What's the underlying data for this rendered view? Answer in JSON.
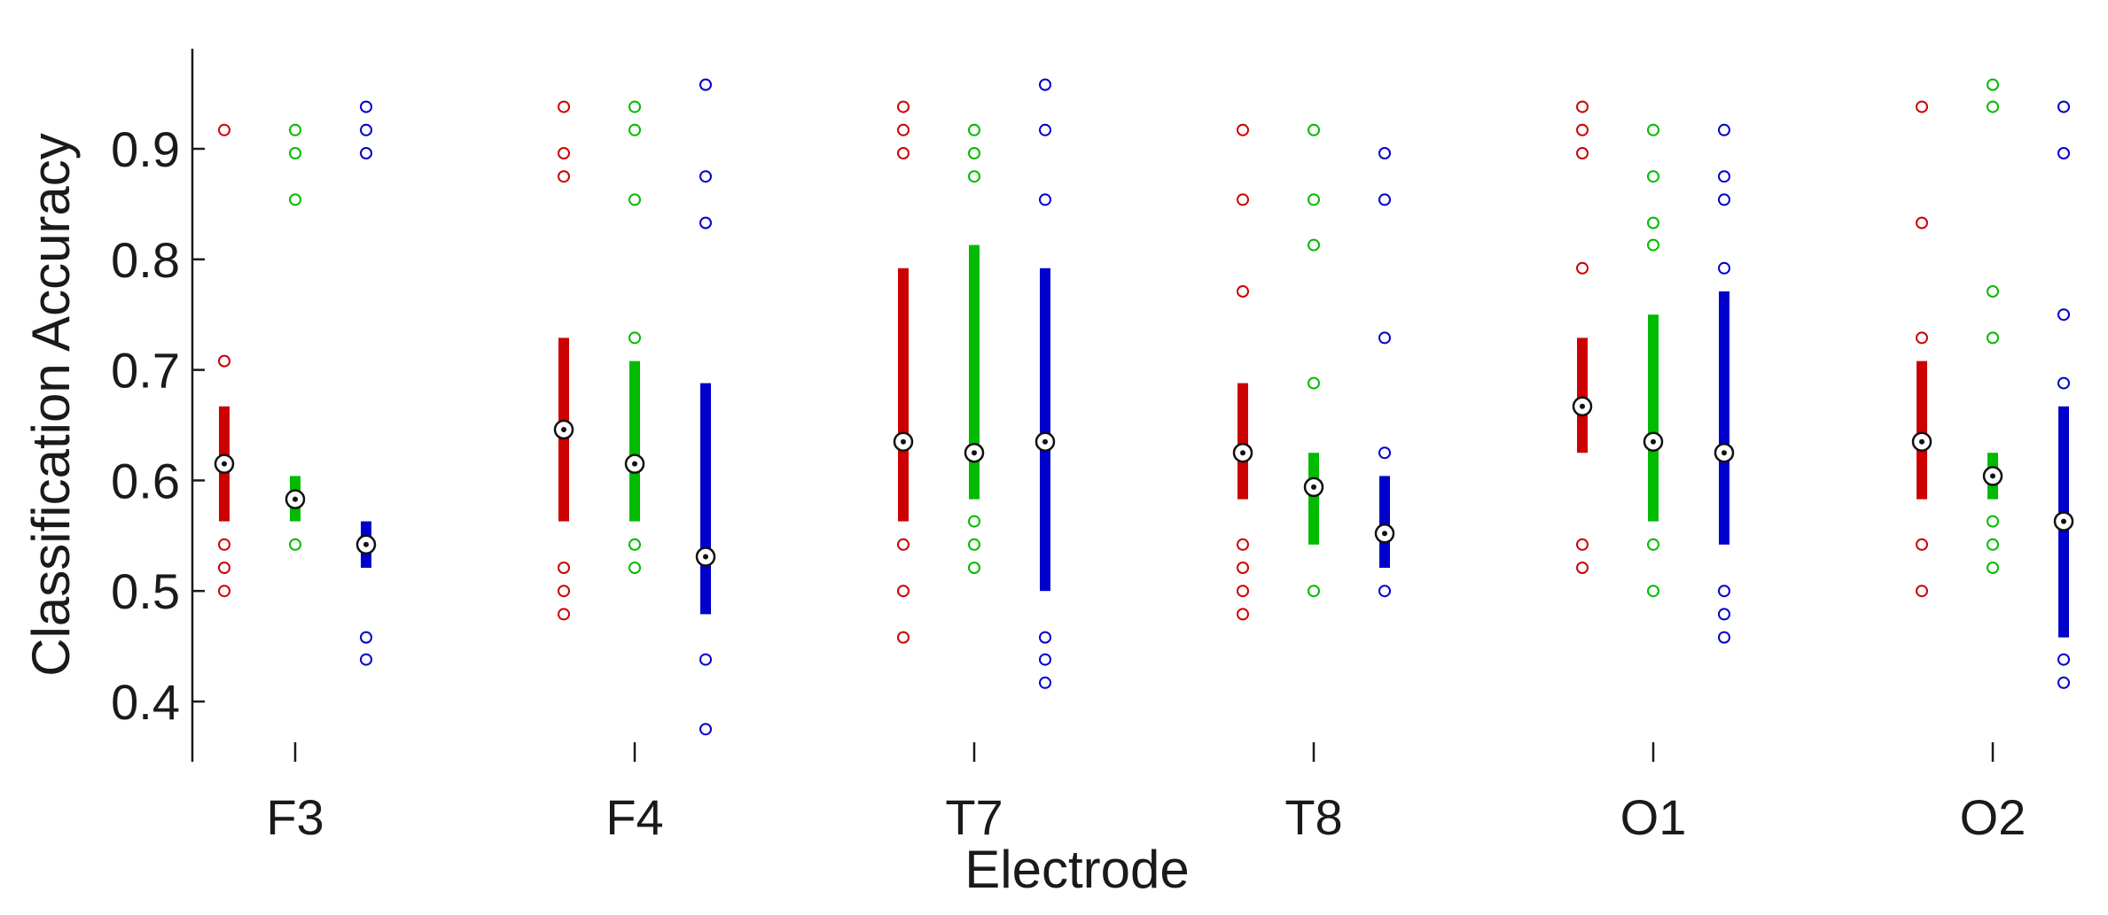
{
  "chart_data": {
    "type": "box",
    "xlabel": "Electrode",
    "ylabel": "Classification Accuracy",
    "categories": [
      "F3",
      "F4",
      "T7",
      "T8",
      "O1",
      "O2"
    ],
    "yticks": [
      "0.4",
      "0.5",
      "0.6",
      "0.7",
      "0.8",
      "0.9"
    ],
    "ylim": [
      0.345,
      0.99
    ],
    "grid": false,
    "legend": "none",
    "series": [
      {
        "color": "#cc0000",
        "boxes": [
          {
            "q1": 0.563,
            "q3": 0.667,
            "median": 0.615,
            "outliers": [
              0.917,
              0.708,
              0.542,
              0.521,
              0.5
            ]
          },
          {
            "q1": 0.563,
            "q3": 0.729,
            "median": 0.646,
            "outliers": [
              0.938,
              0.896,
              0.875,
              0.521,
              0.5,
              0.479
            ]
          },
          {
            "q1": 0.563,
            "q3": 0.792,
            "median": 0.635,
            "outliers": [
              0.938,
              0.917,
              0.896,
              0.542,
              0.5,
              0.458
            ]
          },
          {
            "q1": 0.583,
            "q3": 0.688,
            "median": 0.625,
            "outliers": [
              0.917,
              0.854,
              0.771,
              0.542,
              0.521,
              0.5,
              0.479
            ]
          },
          {
            "q1": 0.625,
            "q3": 0.729,
            "median": 0.667,
            "outliers": [
              0.938,
              0.917,
              0.896,
              0.792,
              0.542,
              0.521
            ]
          },
          {
            "q1": 0.583,
            "q3": 0.708,
            "median": 0.635,
            "outliers": [
              0.938,
              0.833,
              0.729,
              0.542,
              0.5
            ]
          }
        ]
      },
      {
        "color": "#00bb00",
        "boxes": [
          {
            "q1": 0.563,
            "q3": 0.604,
            "median": 0.583,
            "outliers": [
              0.917,
              0.896,
              0.854,
              0.542
            ]
          },
          {
            "q1": 0.563,
            "q3": 0.708,
            "median": 0.615,
            "outliers": [
              0.938,
              0.917,
              0.854,
              0.729,
              0.542,
              0.521
            ]
          },
          {
            "q1": 0.583,
            "q3": 0.813,
            "median": 0.625,
            "outliers": [
              0.917,
              0.896,
              0.875,
              0.563,
              0.542,
              0.521
            ]
          },
          {
            "q1": 0.542,
            "q3": 0.625,
            "median": 0.594,
            "outliers": [
              0.917,
              0.854,
              0.813,
              0.688,
              0.5
            ]
          },
          {
            "q1": 0.563,
            "q3": 0.75,
            "median": 0.635,
            "outliers": [
              0.917,
              0.875,
              0.833,
              0.813,
              0.542,
              0.5
            ]
          },
          {
            "q1": 0.583,
            "q3": 0.625,
            "median": 0.604,
            "outliers": [
              0.958,
              0.938,
              0.771,
              0.729,
              0.563,
              0.542,
              0.521
            ]
          }
        ]
      },
      {
        "color": "#0000cc",
        "boxes": [
          {
            "q1": 0.521,
            "q3": 0.563,
            "median": 0.542,
            "outliers": [
              0.938,
              0.917,
              0.896,
              0.458,
              0.438
            ]
          },
          {
            "q1": 0.479,
            "q3": 0.688,
            "median": 0.531,
            "outliers": [
              0.958,
              0.875,
              0.833,
              0.438,
              0.375
            ]
          },
          {
            "q1": 0.5,
            "q3": 0.792,
            "median": 0.635,
            "outliers": [
              0.958,
              0.917,
              0.854,
              0.458,
              0.438,
              0.417
            ]
          },
          {
            "q1": 0.521,
            "q3": 0.604,
            "median": 0.552,
            "outliers": [
              0.896,
              0.854,
              0.729,
              0.625,
              0.5
            ]
          },
          {
            "q1": 0.542,
            "q3": 0.771,
            "median": 0.625,
            "outliers": [
              0.917,
              0.875,
              0.854,
              0.792,
              0.5,
              0.479,
              0.458
            ]
          },
          {
            "q1": 0.458,
            "q3": 0.667,
            "median": 0.563,
            "outliers": [
              0.938,
              0.896,
              0.75,
              0.688,
              0.438,
              0.417
            ]
          }
        ]
      }
    ]
  }
}
